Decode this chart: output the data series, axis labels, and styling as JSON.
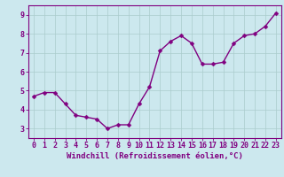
{
  "x": [
    0,
    1,
    2,
    3,
    4,
    5,
    6,
    7,
    8,
    9,
    10,
    11,
    12,
    13,
    14,
    15,
    16,
    17,
    18,
    19,
    20,
    21,
    22,
    23
  ],
  "y": [
    4.7,
    4.9,
    4.9,
    4.3,
    3.7,
    3.6,
    3.5,
    3.0,
    3.2,
    3.2,
    4.3,
    5.2,
    7.1,
    7.6,
    7.9,
    7.5,
    6.4,
    6.4,
    6.5,
    7.5,
    7.9,
    8.0,
    8.4,
    9.1
  ],
  "line_color": "#800080",
  "marker_color": "#800080",
  "bg_color": "#cce8ee",
  "grid_color": "#aacccc",
  "xlabel": "Windchill (Refroidissement éolien,°C)",
  "ylabel": "",
  "xlim": [
    -0.5,
    23.5
  ],
  "ylim": [
    2.5,
    9.5
  ],
  "yticks": [
    3,
    4,
    5,
    6,
    7,
    8,
    9
  ],
  "xtick_labels": [
    "0",
    "1",
    "2",
    "3",
    "4",
    "5",
    "6",
    "7",
    "8",
    "9",
    "10",
    "11",
    "12",
    "13",
    "14",
    "15",
    "16",
    "17",
    "18",
    "19",
    "20",
    "21",
    "22",
    "23"
  ],
  "title": "",
  "xlabel_fontsize": 6.5,
  "tick_fontsize": 6.0,
  "line_width": 1.0,
  "marker_size": 2.5
}
